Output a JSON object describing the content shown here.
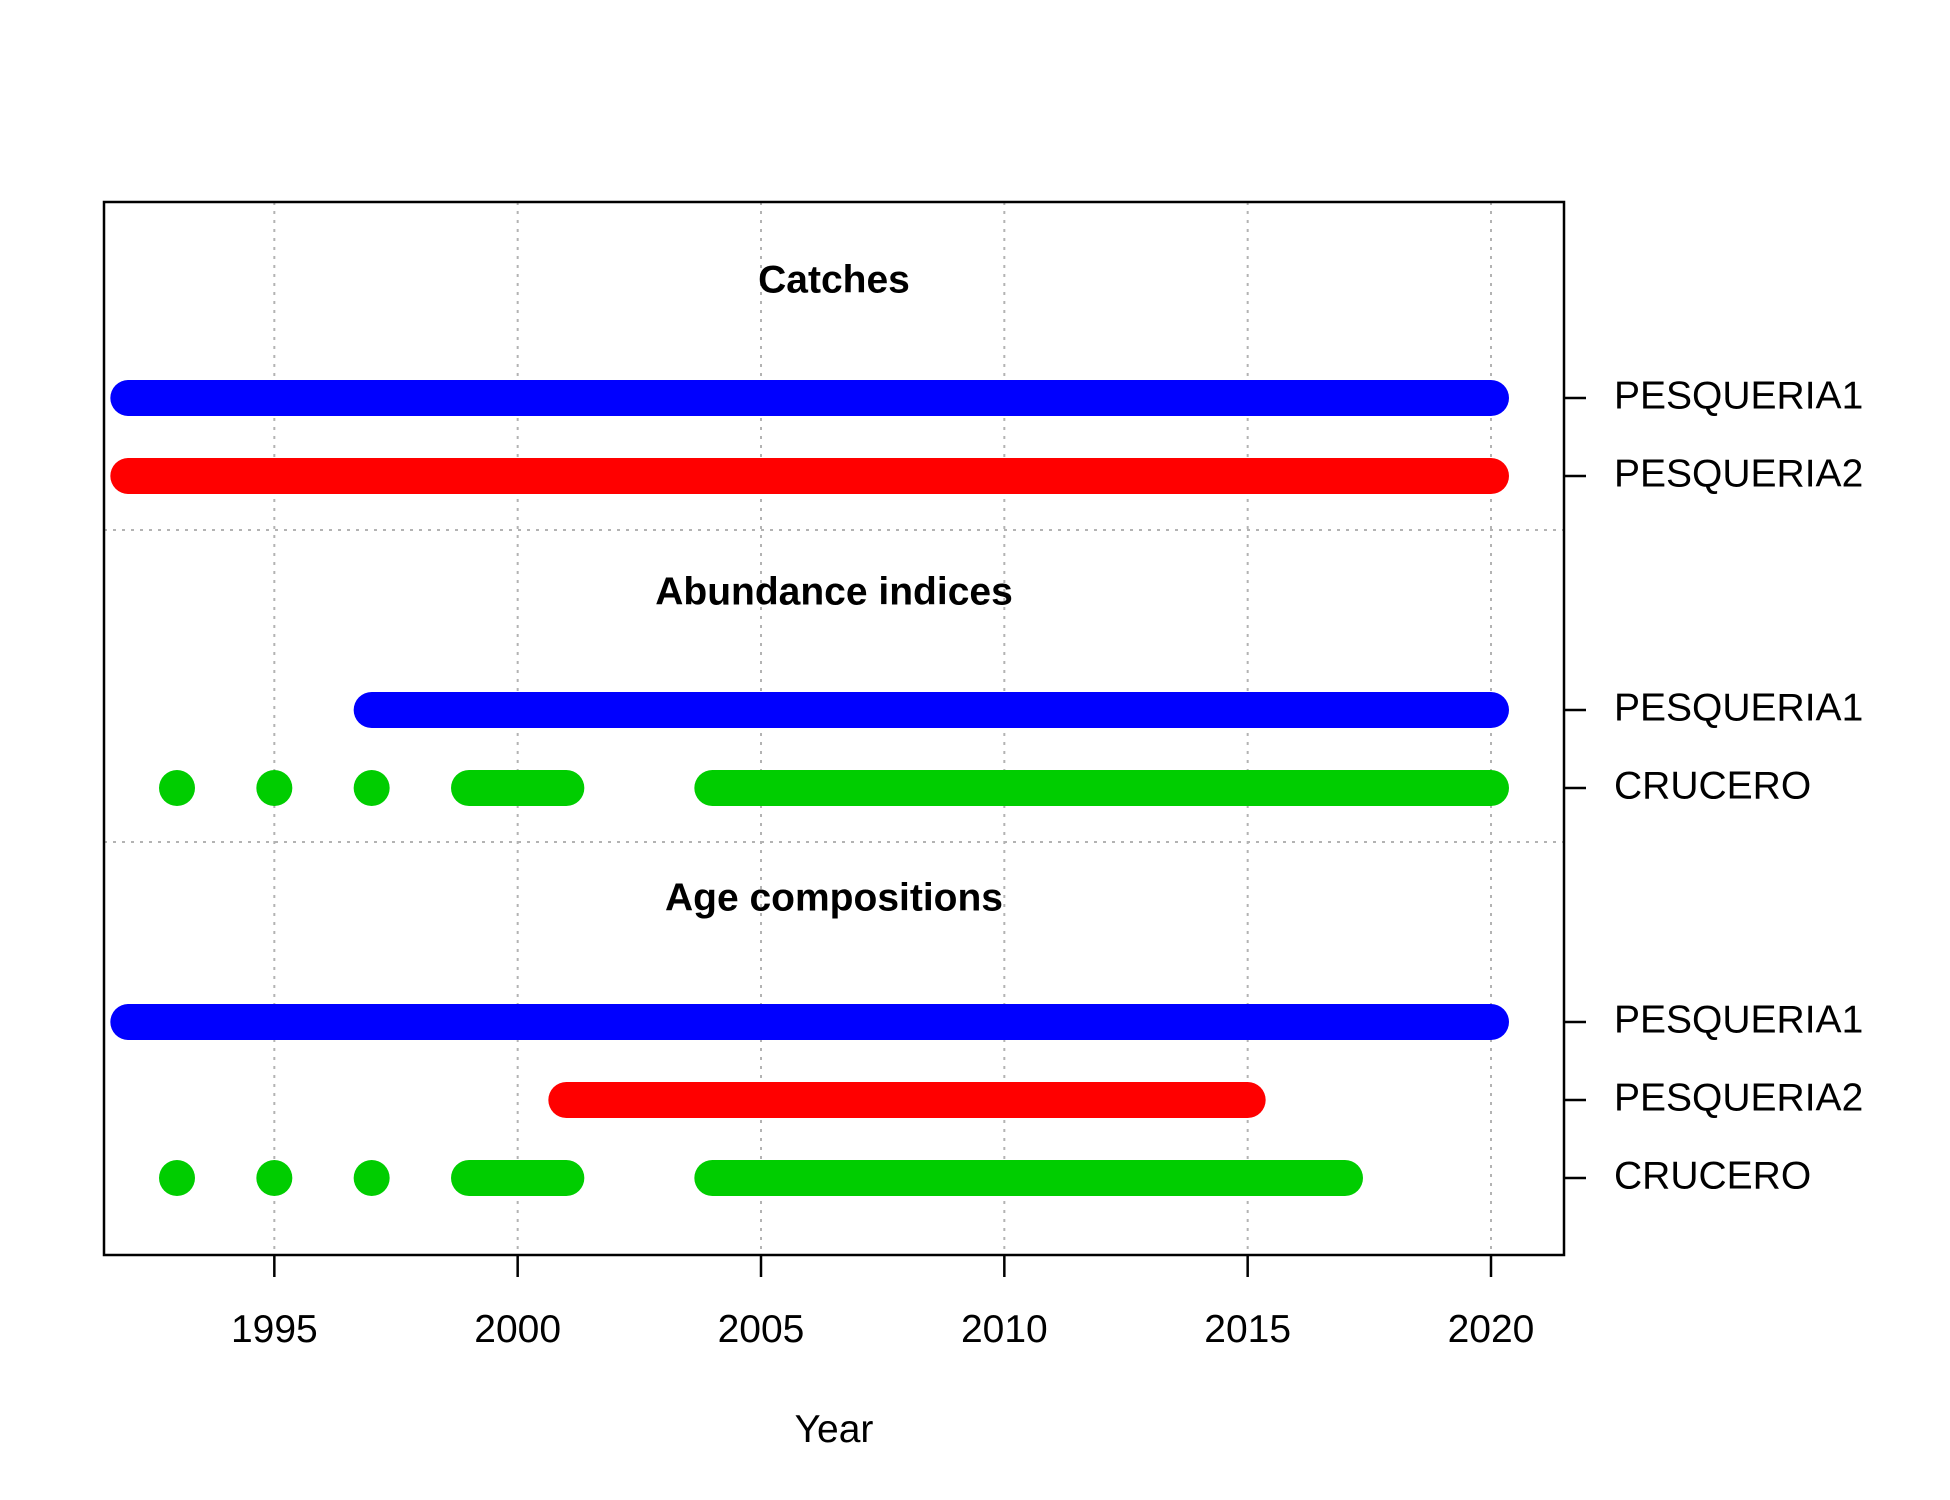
{
  "chart_data": {
    "type": "timeline",
    "xlabel": "Year",
    "xlim": [
      1991.5,
      2021.5
    ],
    "x_ticks": [
      1995,
      2000,
      2005,
      2010,
      2015,
      2020
    ],
    "grid": true,
    "colors": {
      "PESQUERIA1": "#0000ff",
      "PESQUERIA2": "#ff0000",
      "CRUCERO": "#00cd00"
    },
    "groups": [
      {
        "title": "Catches",
        "rows": [
          {
            "label": "PESQUERIA1",
            "color": "#0000ff",
            "segments": [
              [
                1992,
                2020
              ]
            ]
          },
          {
            "label": "PESQUERIA2",
            "color": "#ff0000",
            "segments": [
              [
                1992,
                2020
              ]
            ]
          }
        ]
      },
      {
        "title": "Abundance indices",
        "rows": [
          {
            "label": "PESQUERIA1",
            "color": "#0000ff",
            "segments": [
              [
                1997,
                2020
              ]
            ]
          },
          {
            "label": "CRUCERO",
            "color": "#00cd00",
            "segments": [
              [
                1993,
                1993
              ],
              [
                1995,
                1995
              ],
              [
                1997,
                1997
              ],
              [
                1999,
                2001
              ],
              [
                2004,
                2020
              ]
            ]
          }
        ]
      },
      {
        "title": "Age compositions",
        "rows": [
          {
            "label": "PESQUERIA1",
            "color": "#0000ff",
            "segments": [
              [
                1992,
                2020
              ]
            ]
          },
          {
            "label": "PESQUERIA2",
            "color": "#ff0000",
            "segments": [
              [
                2001,
                2015
              ]
            ]
          },
          {
            "label": "CRUCERO",
            "color": "#00cd00",
            "segments": [
              [
                1993,
                1993
              ],
              [
                1995,
                1995
              ],
              [
                1997,
                1997
              ],
              [
                1999,
                2001
              ],
              [
                2004,
                2017
              ]
            ]
          }
        ]
      }
    ]
  }
}
